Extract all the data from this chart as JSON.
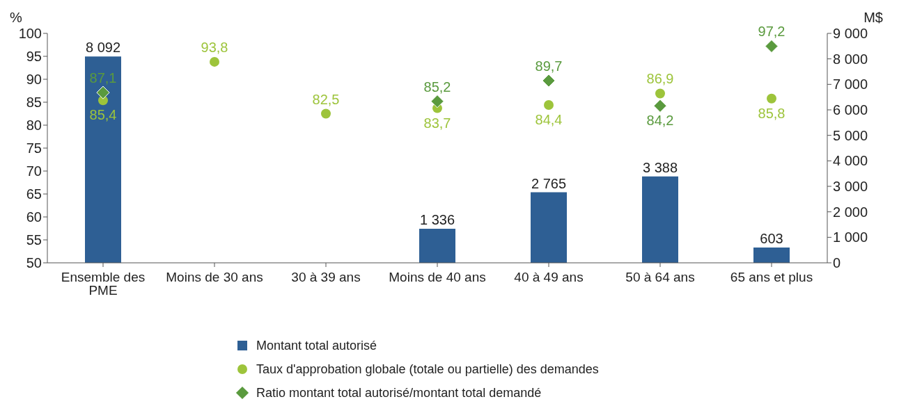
{
  "chart_data": {
    "type": "bar",
    "ylabel": "%",
    "y2label": "M$",
    "categories": [
      "Ensemble des PME",
      "Moins de 30 ans",
      "30 à 39 ans",
      "Moins de 40 ans",
      "40 à 49 ans",
      "50 à 64 ans",
      "65 ans et plus"
    ],
    "series": [
      {
        "name": "Montant total autorisé",
        "axis": "y2",
        "color": "#2e5f94",
        "values": [
          8092,
          null,
          null,
          1336,
          2765,
          3388,
          603
        ],
        "value_labels": [
          "8 092",
          null,
          null,
          "1 336",
          "2 765",
          "3 388",
          "603"
        ]
      },
      {
        "name": "Taux d'approbation globale (totale ou partielle) des demandes",
        "type": "scatter",
        "marker": "circle",
        "color": "#9dc43b",
        "values": [
          85.4,
          93.8,
          82.5,
          83.7,
          84.4,
          86.9,
          85.8
        ],
        "value_labels": [
          "85,4",
          "93,8",
          "82,5",
          "83,7",
          "84,4",
          "86,9",
          "85,8"
        ]
      },
      {
        "name": "Ratio montant total autorisé/montant total demandé",
        "type": "scatter",
        "marker": "diamond",
        "color": "#5a9a3e",
        "values": [
          87.1,
          null,
          null,
          85.2,
          89.7,
          84.2,
          97.2
        ],
        "value_labels": [
          "87,1",
          null,
          null,
          "85,2",
          "89,7",
          "84,2",
          "97,2"
        ]
      }
    ],
    "ylim": [
      50,
      100
    ],
    "yticks": [
      50,
      55,
      60,
      65,
      70,
      75,
      80,
      85,
      90,
      95,
      100
    ],
    "y2lim": [
      0,
      9000
    ],
    "y2ticks": [
      0,
      {
        "value": 1000,
        "label": "1 000"
      },
      {
        "value": 2000,
        "label": "2 000"
      },
      {
        "value": 3000,
        "label": "3 000"
      },
      {
        "value": 4000,
        "label": "4 000"
      },
      {
        "value": 5000,
        "label": "5 000"
      },
      {
        "value": 6000,
        "label": "6 000"
      },
      {
        "value": 7000,
        "label": "7 000"
      },
      {
        "value": 8000,
        "label": "8 000"
      },
      {
        "value": 9000,
        "label": "9 000"
      }
    ],
    "grid": false,
    "legend": "bottom"
  }
}
